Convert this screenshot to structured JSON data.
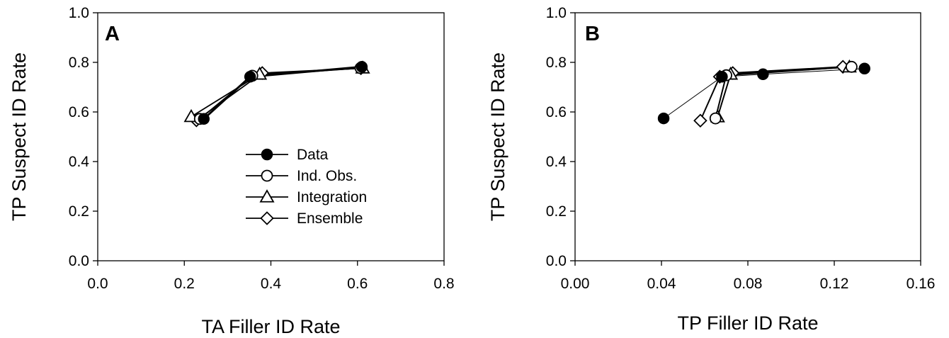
{
  "chart_data": [
    {
      "type": "line",
      "panel_label": "A",
      "xlabel": "TA Filler ID Rate",
      "ylabel": "TP Suspect ID Rate",
      "xlim": [
        0.0,
        0.8
      ],
      "ylim": [
        0.0,
        1.0
      ],
      "xticks": [
        "0.0",
        "0.2",
        "0.4",
        "0.6",
        "0.8"
      ],
      "yticks": [
        "0.0",
        "0.2",
        "0.4",
        "0.6",
        "0.8",
        "1.0"
      ],
      "grid": false,
      "legend_position": "lower-right",
      "series": [
        {
          "name": "Data",
          "marker": "filled-circle",
          "x": [
            0.245,
            0.352,
            0.61
          ],
          "y": [
            0.572,
            0.742,
            0.782
          ]
        },
        {
          "name": "Ind. Obs.",
          "marker": "open-circle",
          "x": [
            0.236,
            0.357,
            0.607
          ],
          "y": [
            0.572,
            0.746,
            0.777
          ]
        },
        {
          "name": "Integration",
          "marker": "open-triangle",
          "x": [
            0.216,
            0.374,
            0.612
          ],
          "y": [
            0.581,
            0.752,
            0.777
          ]
        },
        {
          "name": "Ensemble",
          "marker": "open-diamond",
          "x": [
            0.228,
            0.38,
            0.608
          ],
          "y": [
            0.566,
            0.757,
            0.776
          ]
        }
      ]
    },
    {
      "type": "line",
      "panel_label": "B",
      "xlabel": "TP Filler ID Rate",
      "ylabel": "TP Suspect ID Rate",
      "xlim": [
        0.0,
        0.16
      ],
      "ylim": [
        0.0,
        1.0
      ],
      "xticks": [
        "0.00",
        "0.04",
        "0.08",
        "0.12",
        "0.16"
      ],
      "yticks": [
        "0.0",
        "0.2",
        "0.4",
        "0.6",
        "0.8",
        "1.0"
      ],
      "grid": false,
      "series": [
        {
          "name": "Data",
          "marker": "filled-circle",
          "x": [
            0.041,
            0.068,
            0.087,
            0.134
          ],
          "y": [
            0.574,
            0.742,
            0.752,
            0.775
          ]
        },
        {
          "name": "Ind. Obs.",
          "marker": "open-circle",
          "x": [
            0.065,
            0.07,
            0.128
          ],
          "y": [
            0.574,
            0.748,
            0.782
          ]
        },
        {
          "name": "Integration",
          "marker": "open-triangle",
          "x": [
            0.066,
            0.072,
            0.127
          ],
          "y": [
            0.58,
            0.752,
            0.781
          ]
        },
        {
          "name": "Ensemble",
          "marker": "open-diamond",
          "x": [
            0.058,
            0.067,
            0.073,
            0.124
          ],
          "y": [
            0.565,
            0.742,
            0.757,
            0.782
          ]
        }
      ]
    }
  ]
}
